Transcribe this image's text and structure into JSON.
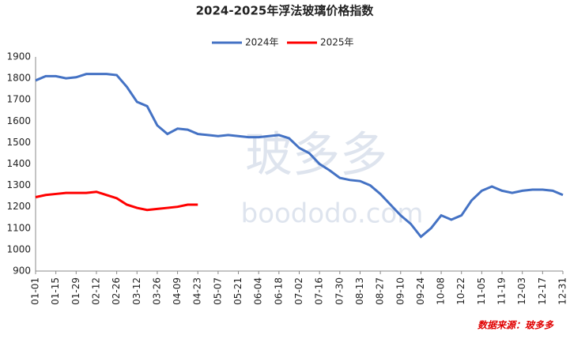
{
  "chart_data": {
    "type": "line",
    "title": "2024-2025年浮法玻璃价格指数",
    "categories": [
      "01-01",
      null,
      "01-15",
      null,
      "01-29",
      null,
      "02-12",
      null,
      "02-26",
      null,
      "03-12",
      null,
      "03-26",
      null,
      "04-09",
      null,
      "04-23",
      null,
      "05-07",
      null,
      "05-21",
      null,
      "06-04",
      null,
      "06-18",
      null,
      "07-02",
      null,
      "07-16",
      null,
      "07-30",
      null,
      "08-13",
      null,
      "08-27",
      null,
      "09-10",
      null,
      "09-24",
      null,
      "10-08",
      null,
      "10-22",
      null,
      "11-05",
      null,
      "11-19",
      null,
      "12-03",
      null,
      "12-17",
      null,
      "12-31"
    ],
    "series": [
      {
        "name": "2024年",
        "color": "#4472c4",
        "values": [
          1790,
          1810,
          1810,
          1800,
          1805,
          1820,
          1820,
          1820,
          1815,
          1760,
          1690,
          1670,
          1580,
          1540,
          1565,
          1560,
          1540,
          1535,
          1530,
          1535,
          1530,
          1525,
          1525,
          1530,
          1535,
          1520,
          1475,
          1450,
          1400,
          1370,
          1335,
          1325,
          1320,
          1300,
          1260,
          1210,
          1160,
          1120,
          1060,
          1100,
          1160,
          1140,
          1160,
          1230,
          1275,
          1295,
          1275,
          1265,
          1275,
          1280,
          1280,
          1275,
          1255
        ]
      },
      {
        "name": "2025年",
        "color": "#ff0000",
        "values": [
          1245,
          1255,
          1260,
          1265,
          1265,
          1265,
          1270,
          1255,
          1240,
          1210,
          1195,
          1185,
          1190,
          1195,
          1200,
          1210,
          1210,
          null,
          null,
          null,
          null,
          null,
          null,
          null,
          null,
          null,
          null,
          null,
          null,
          null,
          null,
          null,
          null,
          null,
          null,
          null,
          null,
          null,
          null,
          null,
          null,
          null,
          null,
          null,
          null,
          null,
          null,
          null,
          null,
          null,
          null,
          null,
          null
        ]
      }
    ],
    "ylim": [
      900,
      1900
    ],
    "yticks": [
      900,
      1000,
      1100,
      1200,
      1300,
      1400,
      1500,
      1600,
      1700,
      1800,
      1900
    ],
    "source": "数据来源：玻多多",
    "watermark": "玻多多",
    "watermark_url": "boododo.com"
  }
}
